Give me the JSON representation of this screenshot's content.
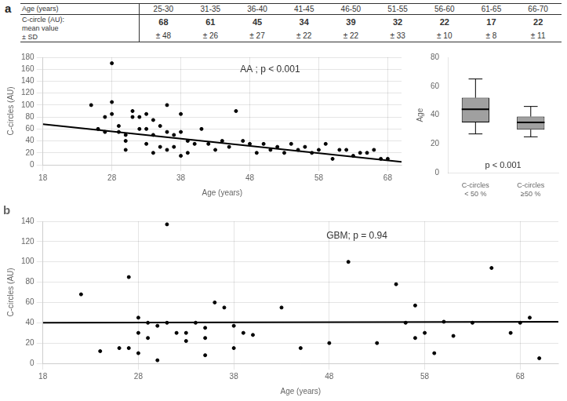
{
  "chart_data": [
    {
      "type": "table",
      "title": "a",
      "xlabel": "Age (years)",
      "ylabel": "C-circle (AU):\nmean value\n± SD",
      "categories": [
        "25-30",
        "31-35",
        "36-40",
        "41-45",
        "46-50",
        "51-55",
        "56-60",
        "61-65",
        "66-70"
      ],
      "values": [
        68,
        61,
        45,
        34,
        39,
        32,
        22,
        17,
        22
      ],
      "sd": [
        48,
        26,
        27,
        22,
        22,
        33,
        10,
        8,
        11
      ],
      "sd_labels": [
        "± 48",
        "± 26",
        "± 27",
        "± 22",
        "± 22",
        "± 33",
        "± 10",
        "± 8",
        "± 11"
      ]
    },
    {
      "type": "scatter",
      "xlabel": "Age (years)",
      "ylabel": "C-circles (AU)",
      "annotation": "AA ; p < 0.001",
      "xlim": [
        18,
        70
      ],
      "ylim": [
        0,
        180
      ],
      "xticks": [
        18,
        28,
        38,
        48,
        58,
        68
      ],
      "yticks": [
        0,
        20,
        40,
        60,
        80,
        100,
        120,
        140,
        160,
        180
      ],
      "grid": true,
      "series": [
        {
          "type": "scatter",
          "color": "black",
          "x": [
            25,
            26,
            27,
            27,
            28,
            28,
            28,
            29,
            29,
            30,
            30,
            30,
            31,
            31,
            32,
            32,
            33,
            33,
            33,
            34,
            34,
            34,
            35,
            35,
            36,
            36,
            36,
            37,
            37,
            38,
            38,
            38,
            39,
            39,
            40,
            41,
            42,
            43,
            44,
            45,
            46,
            47,
            48,
            49,
            50,
            51,
            52,
            53,
            54,
            55,
            56,
            57,
            58,
            59,
            60,
            61,
            62,
            63,
            64,
            65,
            66,
            67,
            68
          ],
          "values": [
            100,
            60,
            80,
            55,
            170,
            105,
            85,
            65,
            55,
            50,
            40,
            25,
            90,
            80,
            80,
            60,
            85,
            60,
            35,
            75,
            50,
            20,
            65,
            30,
            100,
            55,
            25,
            50,
            30,
            85,
            55,
            15,
            40,
            20,
            35,
            60,
            35,
            25,
            40,
            30,
            90,
            40,
            35,
            20,
            35,
            25,
            30,
            20,
            35,
            25,
            30,
            20,
            25,
            35,
            10,
            25,
            25,
            15,
            20,
            20,
            25,
            10,
            10
          ]
        },
        {
          "type": "line",
          "color": "black",
          "x": [
            18,
            70
          ],
          "values": [
            68,
            5
          ]
        }
      ]
    },
    {
      "type": "box",
      "ylabel": "Age",
      "annotation": "p < 0.001",
      "categories": [
        "C-circles\n< 50 %",
        "C-circles\n≥50 %"
      ],
      "stats": [
        {
          "whislo": 27,
          "q1": 35,
          "med": 44,
          "q3": 52,
          "whishi": 65
        },
        {
          "whislo": 25,
          "q1": 30,
          "med": 35,
          "q3": 39,
          "whishi": 46
        }
      ],
      "color": "#a0a0a0",
      "ylim": [
        0,
        80
      ],
      "yticks": [
        0,
        20,
        40,
        60,
        80
      ],
      "grid": false
    },
    {
      "type": "scatter",
      "title": "b",
      "xlabel": "Age (years)",
      "ylabel": "C-circles (AU)",
      "annotation": "GBM; p = 0.94",
      "xlim": [
        18,
        72
      ],
      "ylim": [
        0,
        140
      ],
      "xticks": [
        18,
        28,
        38,
        48,
        58,
        68
      ],
      "yticks": [
        0,
        20,
        40,
        60,
        80,
        100,
        120,
        140
      ],
      "grid": true,
      "series": [
        {
          "type": "scatter",
          "color": "black",
          "x": [
            22,
            24,
            26,
            27,
            27,
            28,
            28,
            28,
            29,
            29,
            30,
            30,
            31,
            31,
            32,
            33,
            33,
            34,
            35,
            35,
            35,
            36,
            37,
            38,
            38,
            39,
            40,
            43,
            45,
            48,
            50,
            53,
            55,
            56,
            57,
            57,
            58,
            59,
            60,
            61,
            63,
            65,
            67,
            68,
            69,
            70
          ],
          "values": [
            68,
            12,
            15,
            85,
            15,
            45,
            30,
            10,
            40,
            25,
            37,
            3,
            137,
            40,
            30,
            30,
            22,
            40,
            35,
            25,
            8,
            60,
            55,
            37,
            15,
            30,
            28,
            55,
            15,
            20,
            100,
            20,
            78,
            40,
            25,
            57,
            30,
            10,
            41,
            27,
            40,
            94,
            30,
            40,
            45,
            5
          ]
        },
        {
          "type": "line",
          "color": "black",
          "x": [
            18,
            72
          ],
          "values": [
            40,
            41
          ]
        }
      ]
    }
  ]
}
